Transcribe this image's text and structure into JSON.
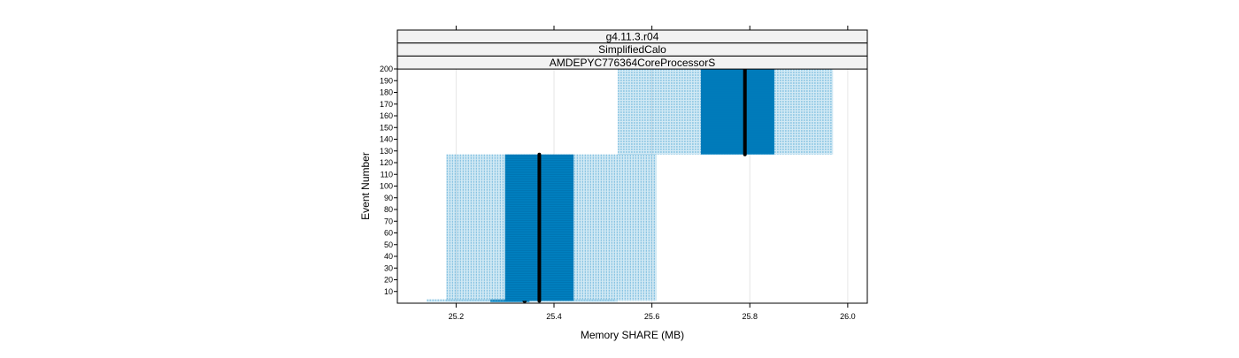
{
  "chart_data": {
    "type": "boxplot",
    "orientation": "horizontal",
    "strips": [
      "g4.11.3.r04",
      "SimplifiedCalo",
      "AMDEPYC776364CoreProcessorS"
    ],
    "xlabel": "Memory SHARE (MB)",
    "ylabel": "Event Number",
    "xlim": [
      25.08,
      26.04
    ],
    "ylim": [
      0,
      200
    ],
    "x_ticks": [
      25.2,
      25.4,
      25.6,
      25.8,
      26.0
    ],
    "x_tick_labels": [
      "25.2",
      "25.4",
      "25.6",
      "25.8",
      "26.0"
    ],
    "y_ticks": [
      10,
      20,
      30,
      40,
      50,
      60,
      70,
      80,
      90,
      100,
      110,
      120,
      130,
      140,
      150,
      160,
      170,
      180,
      190,
      200
    ],
    "y_tick_labels": [
      "10",
      "20",
      "30",
      "40",
      "50",
      "60",
      "70",
      "80",
      "90",
      "100",
      "110",
      "120",
      "130",
      "140",
      "150",
      "160",
      "170",
      "180",
      "190",
      "200"
    ],
    "grid": true,
    "series": [
      {
        "event_min": 1,
        "event_max": 2,
        "whisker_low": 25.14,
        "q1": 25.27,
        "median": 25.34,
        "q3": 25.35,
        "whisker_high": 25.53
      },
      {
        "event_min": 2,
        "event_max": 127,
        "whisker_low": 25.18,
        "q1": 25.3,
        "median": 25.37,
        "q3": 25.44,
        "whisker_high": 25.61
      },
      {
        "event_min": 127,
        "event_max": 200,
        "whisker_low": 25.53,
        "q1": 25.7,
        "median": 25.79,
        "q3": 25.85,
        "whisker_high": 25.97
      }
    ],
    "colors": {
      "box": "#0080c0",
      "whisker": "#7fbfe0",
      "median": "#000000",
      "strip_bg": "#f2f2f2",
      "grid": "#e6e6e6"
    }
  }
}
